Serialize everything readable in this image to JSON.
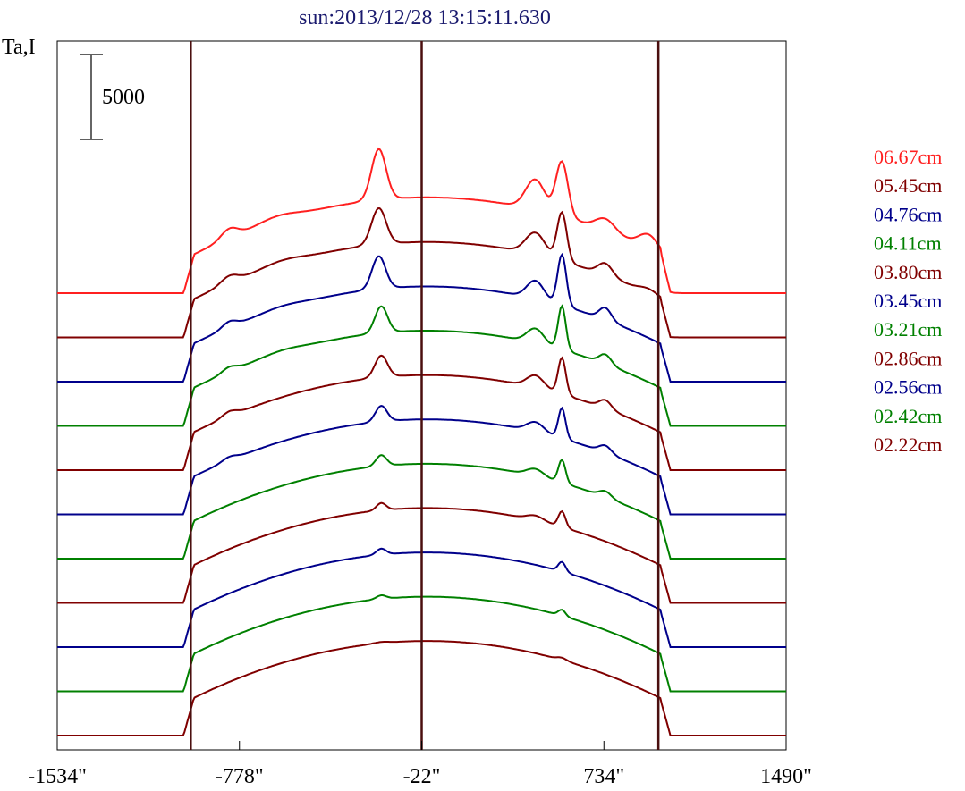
{
  "chart_data": {
    "type": "line",
    "title": "sun:2013/12/28 13:15:11.630",
    "ylabel": "Ta,I",
    "scale_bar_label": "5000",
    "x_tick_labels": [
      "-1534\"",
      "-778\"",
      "-22\"",
      "734\"",
      "1490\""
    ],
    "x_ticks": [
      -1534,
      -778,
      -22,
      734,
      1490
    ],
    "xlim": [
      -1534,
      1490
    ],
    "vertical_markers": [
      -980,
      -22,
      960
    ],
    "limb_x": 970,
    "legend_position": "right",
    "series": [
      {
        "name": "06.67cm",
        "color": "#ff2020",
        "amp": 1.0,
        "limb": 0.18,
        "peaks": [
          [
            -820,
            0.08,
            35
          ],
          [
            -620,
            0.04,
            80
          ],
          [
            -200,
            0.42,
            30
          ],
          [
            450,
            0.25,
            40
          ],
          [
            560,
            0.45,
            25
          ],
          [
            740,
            0.1,
            40
          ],
          [
            920,
            0.12,
            40
          ]
        ]
      },
      {
        "name": "05.45cm",
        "color": "#800000",
        "amp": 1.0,
        "limb": 0.16,
        "peaks": [
          [
            -820,
            0.06,
            35
          ],
          [
            -600,
            0.03,
            80
          ],
          [
            -200,
            0.3,
            30
          ],
          [
            450,
            0.18,
            40
          ],
          [
            560,
            0.4,
            20
          ],
          [
            740,
            0.1,
            30
          ],
          [
            920,
            0.04,
            40
          ]
        ]
      },
      {
        "name": "04.76cm",
        "color": "#00008b",
        "amp": 1.0,
        "limb": 0.15,
        "peaks": [
          [
            -820,
            0.05,
            30
          ],
          [
            -600,
            0.02,
            80
          ],
          [
            -200,
            0.27,
            28
          ],
          [
            450,
            0.15,
            35
          ],
          [
            560,
            0.42,
            18
          ],
          [
            740,
            0.1,
            25
          ]
        ]
      },
      {
        "name": "04.11cm",
        "color": "#008000",
        "amp": 1.0,
        "limb": 0.15,
        "peaks": [
          [
            -820,
            0.04,
            30
          ],
          [
            -600,
            0.02,
            80
          ],
          [
            -190,
            0.22,
            26
          ],
          [
            450,
            0.12,
            35
          ],
          [
            560,
            0.36,
            16
          ],
          [
            740,
            0.08,
            25
          ]
        ]
      },
      {
        "name": "03.80cm",
        "color": "#800000",
        "amp": 1.0,
        "limb": 0.14,
        "peaks": [
          [
            -820,
            0.04,
            30
          ],
          [
            -190,
            0.18,
            26
          ],
          [
            450,
            0.1,
            35
          ],
          [
            560,
            0.3,
            16
          ],
          [
            740,
            0.07,
            25
          ]
        ]
      },
      {
        "name": "03.45cm",
        "color": "#00008b",
        "amp": 1.0,
        "limb": 0.14,
        "peaks": [
          [
            -820,
            0.03,
            30
          ],
          [
            -190,
            0.13,
            24
          ],
          [
            450,
            0.08,
            35
          ],
          [
            560,
            0.25,
            15
          ],
          [
            740,
            0.06,
            25
          ]
        ]
      },
      {
        "name": "03.21cm",
        "color": "#008000",
        "amp": 1.0,
        "limb": 0.13,
        "peaks": [
          [
            -190,
            0.09,
            22
          ],
          [
            450,
            0.06,
            35
          ],
          [
            560,
            0.19,
            15
          ],
          [
            740,
            0.05,
            25
          ]
        ]
      },
      {
        "name": "02.86cm",
        "color": "#800000",
        "amp": 1.0,
        "limb": 0.13,
        "peaks": [
          [
            -190,
            0.06,
            20
          ],
          [
            450,
            0.04,
            35
          ],
          [
            560,
            0.13,
            15
          ]
        ]
      },
      {
        "name": "02.56cm",
        "color": "#00008b",
        "amp": 1.0,
        "limb": 0.12,
        "peaks": [
          [
            -190,
            0.05,
            20
          ],
          [
            560,
            0.08,
            15
          ]
        ]
      },
      {
        "name": "02.42cm",
        "color": "#008000",
        "amp": 1.0,
        "limb": 0.12,
        "peaks": [
          [
            -190,
            0.03,
            20
          ],
          [
            560,
            0.05,
            15
          ]
        ]
      },
      {
        "name": "02.22cm",
        "color": "#800000",
        "amp": 1.0,
        "limb": 0.12,
        "peaks": [
          [
            -190,
            0.01,
            30
          ],
          [
            560,
            0.02,
            20
          ]
        ]
      }
    ]
  }
}
